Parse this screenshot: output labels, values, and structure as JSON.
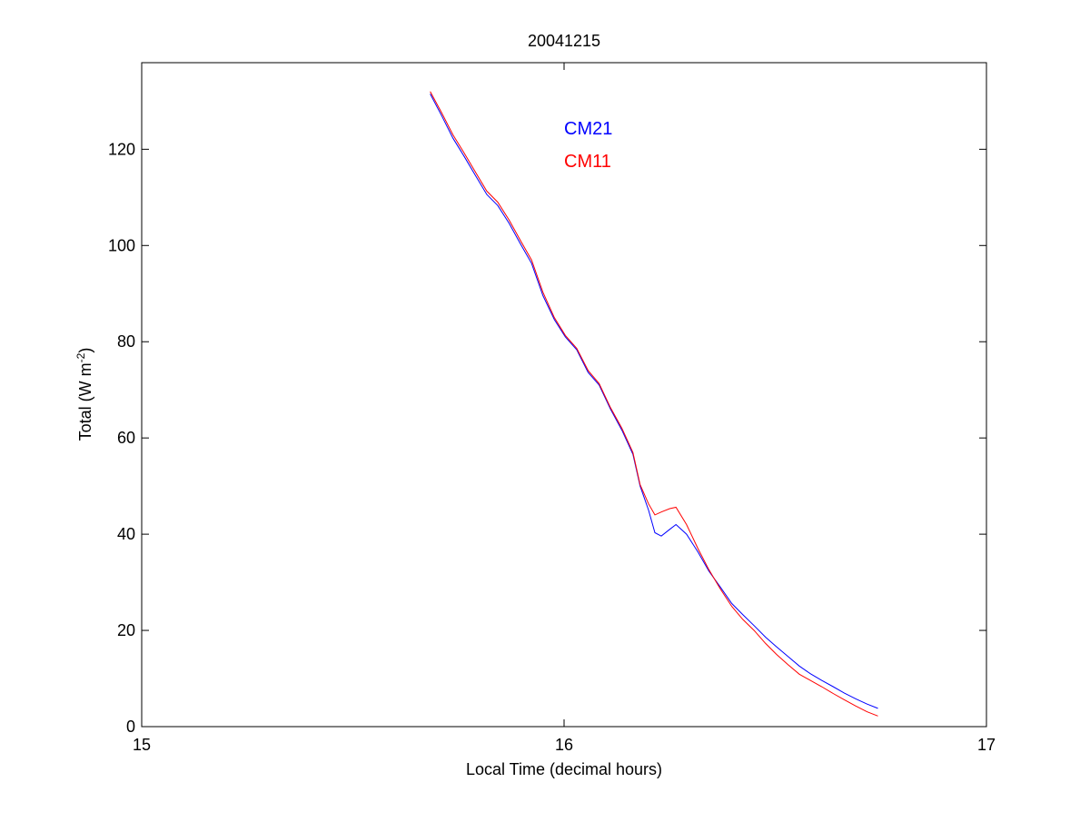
{
  "chart_data": {
    "type": "line",
    "title": "20041215",
    "xlabel": "Local Time (decimal hours)",
    "ylabel_main": "Total (W m",
    "ylabel_sup": "-2",
    "ylabel_end": ")",
    "xlim": [
      15,
      17
    ],
    "ylim": [
      0,
      138
    ],
    "xticks": [
      15,
      16,
      17
    ],
    "yticks": [
      0,
      20,
      40,
      60,
      80,
      100,
      120
    ],
    "grid": false,
    "legend_placement": "top-center",
    "series": [
      {
        "name": "CM21",
        "color": "#0000ff",
        "points": [
          [
            15.683,
            131.5
          ],
          [
            15.71,
            127.0
          ],
          [
            15.737,
            122.3
          ],
          [
            15.763,
            118.6
          ],
          [
            15.79,
            114.6
          ],
          [
            15.817,
            110.6
          ],
          [
            15.843,
            108.3
          ],
          [
            15.87,
            104.6
          ],
          [
            15.897,
            100.3
          ],
          [
            15.923,
            96.3
          ],
          [
            15.95,
            89.6
          ],
          [
            15.977,
            84.6
          ],
          [
            16.003,
            81.0
          ],
          [
            16.03,
            78.3
          ],
          [
            16.057,
            73.6
          ],
          [
            16.083,
            71.0
          ],
          [
            16.11,
            66.0
          ],
          [
            16.137,
            61.6
          ],
          [
            16.163,
            56.6
          ],
          [
            16.18,
            50.0
          ],
          [
            16.2,
            45.0
          ],
          [
            16.215,
            40.3
          ],
          [
            16.23,
            39.6
          ],
          [
            16.25,
            41.0
          ],
          [
            16.265,
            42.0
          ],
          [
            16.29,
            40.0
          ],
          [
            16.317,
            36.3
          ],
          [
            16.343,
            32.3
          ],
          [
            16.37,
            29.0
          ],
          [
            16.397,
            25.6
          ],
          [
            16.423,
            23.3
          ],
          [
            16.45,
            21.0
          ],
          [
            16.477,
            18.6
          ],
          [
            16.503,
            16.6
          ],
          [
            16.53,
            14.6
          ],
          [
            16.557,
            12.6
          ],
          [
            16.583,
            11.0
          ],
          [
            16.61,
            9.6
          ],
          [
            16.637,
            8.3
          ],
          [
            16.663,
            7.0
          ],
          [
            16.69,
            5.8
          ],
          [
            16.717,
            4.7
          ],
          [
            16.743,
            3.8
          ]
        ]
      },
      {
        "name": "CM11",
        "color": "#ff0000",
        "points": [
          [
            15.683,
            132.0
          ],
          [
            15.71,
            127.6
          ],
          [
            15.737,
            123.0
          ],
          [
            15.763,
            119.3
          ],
          [
            15.79,
            115.3
          ],
          [
            15.817,
            111.3
          ],
          [
            15.843,
            109.0
          ],
          [
            15.87,
            105.3
          ],
          [
            15.897,
            101.0
          ],
          [
            15.923,
            97.0
          ],
          [
            15.95,
            90.3
          ],
          [
            15.977,
            85.0
          ],
          [
            16.003,
            81.3
          ],
          [
            16.03,
            78.6
          ],
          [
            16.057,
            74.0
          ],
          [
            16.083,
            71.3
          ],
          [
            16.11,
            66.3
          ],
          [
            16.137,
            62.0
          ],
          [
            16.163,
            57.0
          ],
          [
            16.18,
            50.3
          ],
          [
            16.2,
            46.3
          ],
          [
            16.215,
            44.0
          ],
          [
            16.23,
            44.6
          ],
          [
            16.25,
            45.3
          ],
          [
            16.265,
            45.6
          ],
          [
            16.29,
            42.0
          ],
          [
            16.317,
            37.0
          ],
          [
            16.343,
            32.6
          ],
          [
            16.37,
            28.6
          ],
          [
            16.397,
            25.0
          ],
          [
            16.423,
            22.3
          ],
          [
            16.45,
            20.0
          ],
          [
            16.477,
            17.3
          ],
          [
            16.503,
            15.0
          ],
          [
            16.53,
            12.9
          ],
          [
            16.557,
            10.9
          ],
          [
            16.583,
            9.6
          ],
          [
            16.61,
            8.3
          ],
          [
            16.637,
            6.9
          ],
          [
            16.663,
            5.6
          ],
          [
            16.69,
            4.3
          ],
          [
            16.717,
            3.1
          ],
          [
            16.743,
            2.2
          ]
        ]
      }
    ]
  }
}
